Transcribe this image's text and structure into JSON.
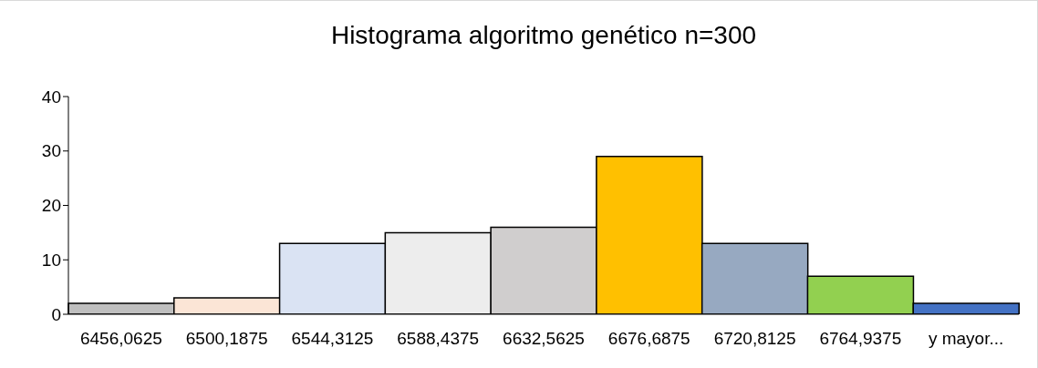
{
  "chart_data": {
    "type": "bar",
    "title": "Histograma algoritmo genético n=300",
    "categories": [
      "6456,0625",
      "6500,1875",
      "6544,3125",
      "6588,4375",
      "6632,5625",
      "6676,6875",
      "6720,8125",
      "6764,9375",
      "y mayor..."
    ],
    "values": [
      2,
      3,
      13,
      15,
      16,
      29,
      13,
      7,
      2
    ],
    "colors": [
      "#bfbfbf",
      "#fbe5d6",
      "#dae3f3",
      "#ededed",
      "#d0cece",
      "#ffc000",
      "#97a9c1",
      "#92d050",
      "#4472c4"
    ],
    "ylim": [
      0,
      40
    ],
    "yticks": [
      0,
      10,
      20,
      30,
      40
    ],
    "grid": false,
    "legend": false
  }
}
